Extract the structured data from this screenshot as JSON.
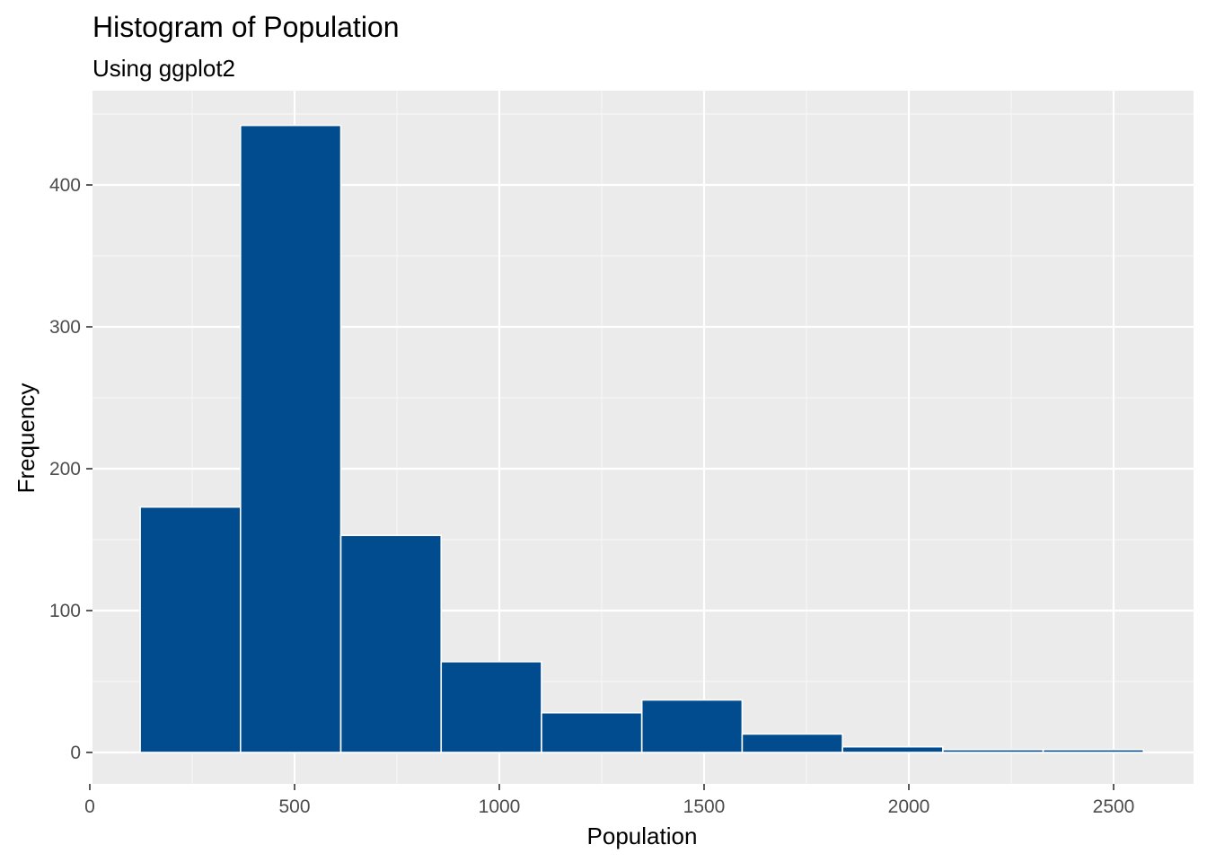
{
  "chart_data": {
    "type": "bar",
    "title": "Histogram of Population",
    "subtitle": "Using ggplot2",
    "xlabel": "Population",
    "ylabel": "Frequency",
    "xlim": [
      0,
      2600
    ],
    "ylim": [
      -22,
      462
    ],
    "x_ticks": [
      0,
      500,
      1000,
      1500,
      2000,
      2500
    ],
    "x_tick_labels": [
      "0",
      "500",
      "1000",
      "1500",
      "2000",
      "2500"
    ],
    "y_ticks": [
      0,
      100,
      200,
      300,
      400
    ],
    "y_tick_labels": [
      "0",
      "100",
      "200",
      "300",
      "400"
    ],
    "grid": true,
    "bins": [
      {
        "x0": 123,
        "x1": 368,
        "count": 173
      },
      {
        "x0": 368,
        "x1": 613,
        "count": 442
      },
      {
        "x0": 613,
        "x1": 858,
        "count": 153
      },
      {
        "x0": 858,
        "x1": 1103,
        "count": 64
      },
      {
        "x0": 1103,
        "x1": 1348,
        "count": 28
      },
      {
        "x0": 1348,
        "x1": 1593,
        "count": 37
      },
      {
        "x0": 1593,
        "x1": 1838,
        "count": 13
      },
      {
        "x0": 1838,
        "x1": 2083,
        "count": 4
      },
      {
        "x0": 2083,
        "x1": 2328,
        "count": 2
      },
      {
        "x0": 2328,
        "x1": 2573,
        "count": 2
      }
    ],
    "colors": {
      "bar_fill": "#004c8f",
      "bar_outline": "#ffffff",
      "panel_background": "#ebebeb",
      "grid_major": "#ffffff",
      "grid_minor": "#f5f5f5"
    }
  }
}
